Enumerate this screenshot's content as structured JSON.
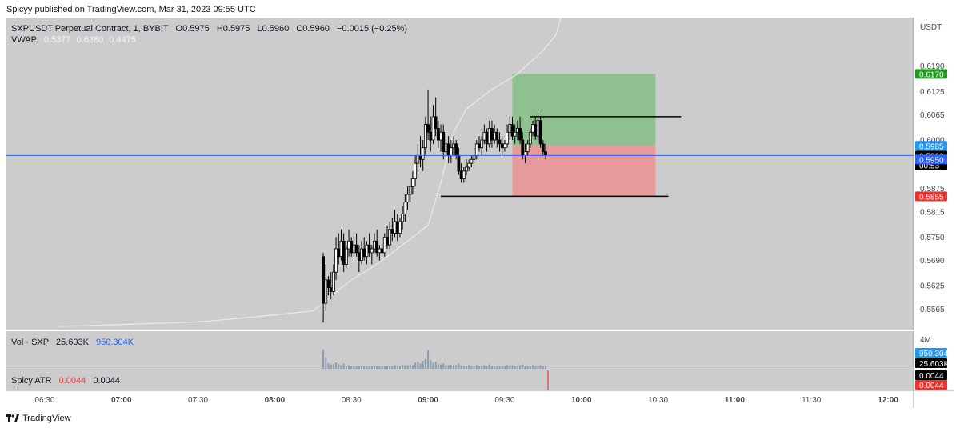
{
  "header": {
    "published": "Spicyy published on TradingView.com, Mar 31, 2023 09:55 UTC"
  },
  "footer": {
    "brand": "TradingView"
  },
  "colors": {
    "background": "#cccccc",
    "vwap": "#e8e8e8",
    "candle": "#000000",
    "volume": "#8a9cb0",
    "price_line": "#2962ff",
    "target_zone": "#8fc08f",
    "stop_zone": "#e69a9a",
    "target_badge": "#1e9b1e",
    "stop_badge": "#f0302a",
    "entry_badge": "#2196f3",
    "atr": "#f23645"
  },
  "chart_data": {
    "type": "candlestick",
    "symbol_line": {
      "symbol": "SXPUSDT Perpetual Contract, 1, BYBIT",
      "o_label": "O",
      "o_value": "0.5975",
      "h_label": "H",
      "h_value": "0.5975",
      "l_label": "L",
      "l_value": "0.5960",
      "c_label": "C",
      "c_value": "0.5960",
      "change": "−0.0015 (−0.25%)"
    },
    "vwap_legend": {
      "label": "VWAP",
      "values": [
        "0.5377",
        "0.6280",
        "0.4475"
      ]
    },
    "vol_legend": {
      "label": "Vol · SXP",
      "v1": "25.603K",
      "v2": "950.304K"
    },
    "atr_legend": {
      "label": "Spicy ATR",
      "v1": "0.0044",
      "v2": "0.0044"
    },
    "y_axis": {
      "unit": "USDT",
      "ticks": [
        "0.6190",
        "0.6125",
        "0.6065",
        "0.6000",
        "0.5875",
        "0.5815",
        "0.5750",
        "0.5690",
        "0.5625",
        "0.5565"
      ],
      "range": [
        0.551,
        0.6315
      ]
    },
    "x_axis": {
      "ticks": [
        "06:30",
        "07:00",
        "07:30",
        "08:00",
        "08:30",
        "09:00",
        "09:30",
        "10:00",
        "10:30",
        "11:00",
        "11:30",
        "12:00"
      ],
      "range_minutes": [
        375,
        730
      ]
    },
    "badges": [
      {
        "name": "target",
        "value": "0.6170"
      },
      {
        "name": "entry",
        "value": "0.5985"
      },
      {
        "name": "last",
        "value": "0.5960",
        "sub": "00:53"
      },
      {
        "name": "level",
        "value": "0.5950"
      },
      {
        "name": "stop",
        "value": "0.5855"
      }
    ],
    "volume_axis": {
      "max_label": "4M",
      "badge1": "950.304K",
      "badge2": "25.603K"
    },
    "atr_axis": {
      "badge1": "0.0044",
      "badge2": "0.0044"
    },
    "position": {
      "start_time": "09:33",
      "end_time": "10:29",
      "entry": 0.5985,
      "target": 0.617,
      "stop": 0.5855
    },
    "lines": [
      {
        "name": "range-high",
        "from_time": "09:40",
        "to_time": "10:39",
        "price": 0.606
      },
      {
        "name": "range-low",
        "from_time": "09:05",
        "to_time": "10:34",
        "price": 0.5855
      }
    ],
    "last_price": 0.596,
    "candles": [
      [
        "08:19",
        0.57,
        0.571,
        0.553,
        0.558
      ],
      [
        "08:20",
        0.558,
        0.568,
        0.556,
        0.564
      ],
      [
        "08:21",
        0.564,
        0.565,
        0.56,
        0.562
      ],
      [
        "08:22",
        0.562,
        0.566,
        0.559,
        0.561
      ],
      [
        "08:23",
        0.561,
        0.568,
        0.56,
        0.566
      ],
      [
        "08:24",
        0.566,
        0.575,
        0.564,
        0.572
      ],
      [
        "08:25",
        0.572,
        0.576,
        0.568,
        0.57
      ],
      [
        "08:26",
        0.57,
        0.577,
        0.569,
        0.574
      ],
      [
        "08:27",
        0.574,
        0.576,
        0.566,
        0.568
      ],
      [
        "08:28",
        0.568,
        0.573,
        0.567,
        0.572
      ],
      [
        "08:29",
        0.572,
        0.577,
        0.57,
        0.574
      ],
      [
        "08:30",
        0.574,
        0.575,
        0.57,
        0.571
      ],
      [
        "08:31",
        0.571,
        0.576,
        0.57,
        0.573
      ],
      [
        "08:32",
        0.573,
        0.576,
        0.57,
        0.571
      ],
      [
        "08:33",
        0.571,
        0.573,
        0.566,
        0.569
      ],
      [
        "08:34",
        0.569,
        0.574,
        0.568,
        0.572
      ],
      [
        "08:35",
        0.572,
        0.575,
        0.569,
        0.57
      ],
      [
        "08:36",
        0.57,
        0.574,
        0.568,
        0.573
      ],
      [
        "08:37",
        0.573,
        0.576,
        0.57,
        0.571
      ],
      [
        "08:38",
        0.571,
        0.573,
        0.568,
        0.572
      ],
      [
        "08:39",
        0.572,
        0.576,
        0.571,
        0.574
      ],
      [
        "08:40",
        0.574,
        0.577,
        0.57,
        0.571
      ],
      [
        "08:41",
        0.571,
        0.573,
        0.569,
        0.572
      ],
      [
        "08:42",
        0.572,
        0.575,
        0.57,
        0.571
      ],
      [
        "08:43",
        0.571,
        0.576,
        0.57,
        0.575
      ],
      [
        "08:44",
        0.575,
        0.578,
        0.572,
        0.573
      ],
      [
        "08:45",
        0.573,
        0.579,
        0.572,
        0.577
      ],
      [
        "08:46",
        0.577,
        0.58,
        0.574,
        0.576
      ],
      [
        "08:47",
        0.576,
        0.582,
        0.575,
        0.579
      ],
      [
        "08:48",
        0.579,
        0.581,
        0.574,
        0.576
      ],
      [
        "08:49",
        0.576,
        0.58,
        0.575,
        0.579
      ],
      [
        "08:50",
        0.579,
        0.583,
        0.577,
        0.581
      ],
      [
        "08:51",
        0.581,
        0.586,
        0.579,
        0.584
      ],
      [
        "08:52",
        0.584,
        0.588,
        0.582,
        0.586
      ],
      [
        "08:53",
        0.586,
        0.59,
        0.584,
        0.588
      ],
      [
        "08:54",
        0.588,
        0.592,
        0.586,
        0.59
      ],
      [
        "08:55",
        0.59,
        0.596,
        0.588,
        0.594
      ],
      [
        "08:56",
        0.594,
        0.599,
        0.591,
        0.596
      ],
      [
        "08:57",
        0.596,
        0.601,
        0.593,
        0.595
      ],
      [
        "08:58",
        0.595,
        0.6,
        0.592,
        0.598
      ],
      [
        "08:59",
        0.598,
        0.606,
        0.596,
        0.604
      ],
      [
        "09:00",
        0.604,
        0.613,
        0.6,
        0.602
      ],
      [
        "09:01",
        0.602,
        0.606,
        0.597,
        0.6
      ],
      [
        "09:02",
        0.6,
        0.609,
        0.599,
        0.606
      ],
      [
        "09:03",
        0.606,
        0.611,
        0.601,
        0.603
      ],
      [
        "09:04",
        0.603,
        0.605,
        0.598,
        0.6
      ],
      [
        "09:05",
        0.6,
        0.604,
        0.597,
        0.602
      ],
      [
        "09:06",
        0.602,
        0.604,
        0.595,
        0.597
      ],
      [
        "09:07",
        0.597,
        0.601,
        0.595,
        0.599
      ],
      [
        "09:08",
        0.599,
        0.601,
        0.594,
        0.596
      ],
      [
        "09:09",
        0.596,
        0.6,
        0.594,
        0.598
      ],
      [
        "09:10",
        0.598,
        0.601,
        0.596,
        0.599
      ],
      [
        "09:11",
        0.599,
        0.6,
        0.595,
        0.596
      ],
      [
        "09:12",
        0.596,
        0.598,
        0.591,
        0.592
      ],
      [
        "09:13",
        0.592,
        0.594,
        0.589,
        0.59
      ],
      [
        "09:14",
        0.59,
        0.593,
        0.589,
        0.592
      ],
      [
        "09:15",
        0.592,
        0.595,
        0.591,
        0.593
      ],
      [
        "09:16",
        0.593,
        0.595,
        0.592,
        0.594
      ],
      [
        "09:17",
        0.594,
        0.596,
        0.593,
        0.595
      ],
      [
        "09:18",
        0.595,
        0.598,
        0.594,
        0.596
      ],
      [
        "09:19",
        0.596,
        0.6,
        0.595,
        0.599
      ],
      [
        "09:20",
        0.599,
        0.601,
        0.597,
        0.598
      ],
      [
        "09:21",
        0.598,
        0.601,
        0.596,
        0.6
      ],
      [
        "09:22",
        0.6,
        0.604,
        0.599,
        0.602
      ],
      [
        "09:23",
        0.602,
        0.603,
        0.597,
        0.599
      ],
      [
        "09:24",
        0.599,
        0.605,
        0.598,
        0.603
      ],
      [
        "09:25",
        0.603,
        0.605,
        0.598,
        0.6
      ],
      [
        "09:26",
        0.6,
        0.604,
        0.599,
        0.602
      ],
      [
        "09:27",
        0.602,
        0.603,
        0.598,
        0.6
      ],
      [
        "09:28",
        0.6,
        0.602,
        0.597,
        0.599
      ],
      [
        "09:29",
        0.599,
        0.601,
        0.596,
        0.598
      ],
      [
        "09:30",
        0.598,
        0.6,
        0.597,
        0.599
      ],
      [
        "09:31",
        0.599,
        0.604,
        0.598,
        0.602
      ],
      [
        "09:32",
        0.602,
        0.606,
        0.6,
        0.604
      ],
      [
        "09:33",
        0.604,
        0.606,
        0.6,
        0.601
      ],
      [
        "09:34",
        0.601,
        0.604,
        0.599,
        0.602
      ],
      [
        "09:35",
        0.602,
        0.605,
        0.6,
        0.603
      ],
      [
        "09:36",
        0.603,
        0.606,
        0.599,
        0.6
      ],
      [
        "09:37",
        0.6,
        0.602,
        0.595,
        0.596
      ],
      [
        "09:38",
        0.596,
        0.599,
        0.594,
        0.597
      ],
      [
        "09:39",
        0.597,
        0.6,
        0.596,
        0.599
      ],
      [
        "09:40",
        0.599,
        0.603,
        0.598,
        0.602
      ],
      [
        "09:41",
        0.602,
        0.605,
        0.601,
        0.604
      ],
      [
        "09:42",
        0.604,
        0.606,
        0.6,
        0.601
      ],
      [
        "09:43",
        0.601,
        0.607,
        0.6,
        0.605
      ],
      [
        "09:44",
        0.605,
        0.606,
        0.598,
        0.599
      ],
      [
        "09:45",
        0.599,
        0.6,
        0.596,
        0.597
      ],
      [
        "09:46",
        0.597,
        0.599,
        0.595,
        0.596
      ]
    ],
    "volumes": [
      [
        "08:19",
        2.2
      ],
      [
        "08:20",
        1.3
      ],
      [
        "08:21",
        0.6
      ],
      [
        "08:22",
        0.5
      ],
      [
        "08:23",
        0.5
      ],
      [
        "08:24",
        0.7
      ],
      [
        "08:25",
        0.5
      ],
      [
        "08:26",
        0.4
      ],
      [
        "08:27",
        0.6
      ],
      [
        "08:28",
        0.3
      ],
      [
        "08:29",
        0.4
      ],
      [
        "08:30",
        0.3
      ],
      [
        "08:31",
        0.3
      ],
      [
        "08:32",
        0.3
      ],
      [
        "08:33",
        0.3
      ],
      [
        "08:34",
        0.3
      ],
      [
        "08:35",
        0.3
      ],
      [
        "08:36",
        0.3
      ],
      [
        "08:37",
        0.3
      ],
      [
        "08:38",
        0.3
      ],
      [
        "08:39",
        0.3
      ],
      [
        "08:40",
        0.3
      ],
      [
        "08:41",
        0.3
      ],
      [
        "08:42",
        0.3
      ],
      [
        "08:43",
        0.3
      ],
      [
        "08:44",
        0.3
      ],
      [
        "08:45",
        0.3
      ],
      [
        "08:46",
        0.3
      ],
      [
        "08:47",
        0.4
      ],
      [
        "08:48",
        0.3
      ],
      [
        "08:49",
        0.3
      ],
      [
        "08:50",
        0.4
      ],
      [
        "08:51",
        0.4
      ],
      [
        "08:52",
        0.4
      ],
      [
        "08:53",
        0.4
      ],
      [
        "08:54",
        0.4
      ],
      [
        "08:55",
        0.7
      ],
      [
        "08:56",
        0.8
      ],
      [
        "08:57",
        0.6
      ],
      [
        "08:58",
        0.9
      ],
      [
        "08:59",
        1.1
      ],
      [
        "09:00",
        2.1
      ],
      [
        "09:01",
        1.0
      ],
      [
        "09:02",
        0.7
      ],
      [
        "09:03",
        0.8
      ],
      [
        "09:04",
        0.5
      ],
      [
        "09:05",
        0.5
      ],
      [
        "09:06",
        0.6
      ],
      [
        "09:07",
        0.4
      ],
      [
        "09:08",
        0.4
      ],
      [
        "09:09",
        0.4
      ],
      [
        "09:10",
        0.4
      ],
      [
        "09:11",
        0.4
      ],
      [
        "09:12",
        0.6
      ],
      [
        "09:13",
        0.4
      ],
      [
        "09:14",
        0.3
      ],
      [
        "09:15",
        0.3
      ],
      [
        "09:16",
        0.4
      ],
      [
        "09:17",
        0.3
      ],
      [
        "09:18",
        0.3
      ],
      [
        "09:19",
        0.4
      ],
      [
        "09:20",
        0.3
      ],
      [
        "09:21",
        0.3
      ],
      [
        "09:22",
        0.4
      ],
      [
        "09:23",
        0.3
      ],
      [
        "09:24",
        0.5
      ],
      [
        "09:25",
        0.3
      ],
      [
        "09:26",
        0.3
      ],
      [
        "09:27",
        0.3
      ],
      [
        "09:28",
        0.3
      ],
      [
        "09:29",
        0.3
      ],
      [
        "09:30",
        0.3
      ],
      [
        "09:31",
        0.4
      ],
      [
        "09:32",
        0.4
      ],
      [
        "09:33",
        0.4
      ],
      [
        "09:34",
        0.3
      ],
      [
        "09:35",
        0.3
      ],
      [
        "09:36",
        0.4
      ],
      [
        "09:37",
        0.5
      ],
      [
        "09:38",
        0.3
      ],
      [
        "09:39",
        0.3
      ],
      [
        "09:40",
        0.3
      ],
      [
        "09:41",
        0.4
      ],
      [
        "09:42",
        0.3
      ],
      [
        "09:43",
        0.4
      ],
      [
        "09:44",
        0.4
      ],
      [
        "09:45",
        0.3
      ],
      [
        "09:46",
        0.3
      ]
    ],
    "vwap": [
      [
        "06:35",
        0.552
      ],
      [
        "07:00",
        0.5525
      ],
      [
        "07:30",
        0.5532
      ],
      [
        "07:45",
        0.554
      ],
      [
        "08:00",
        0.555
      ],
      [
        "08:15",
        0.556
      ],
      [
        "08:30",
        0.564
      ],
      [
        "08:40",
        0.568
      ],
      [
        "08:50",
        0.573
      ],
      [
        "09:00",
        0.578
      ],
      [
        "09:05",
        0.589
      ],
      [
        "09:10",
        0.602
      ],
      [
        "09:15",
        0.608
      ],
      [
        "09:25",
        0.613
      ],
      [
        "09:35",
        0.617
      ],
      [
        "09:45",
        0.623
      ],
      [
        "09:50",
        0.627
      ],
      [
        "09:52",
        0.6315
      ]
    ]
  }
}
